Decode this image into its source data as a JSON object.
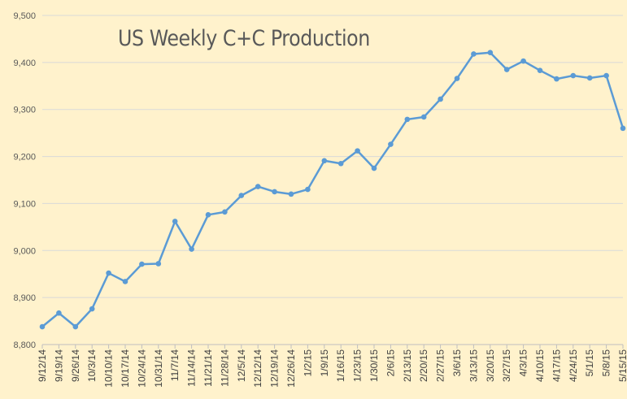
{
  "chart_data": {
    "type": "line",
    "title": "US Weekly C+C Production",
    "xlabel": "",
    "ylabel": "",
    "ylim": [
      8800,
      9500
    ],
    "yticks": [
      8800,
      8900,
      9000,
      9100,
      9200,
      9300,
      9400,
      9500
    ],
    "ytick_labels": [
      "8,800",
      "8,900",
      "9,000",
      "9,100",
      "9,200",
      "9,300",
      "9,400",
      "9,500"
    ],
    "grid": true,
    "categories": [
      "9/12/14",
      "9/19/14",
      "9/26/14",
      "10/3/14",
      "10/10/14",
      "10/17/14",
      "10/24/14",
      "10/31/14",
      "11/7/14",
      "11/14/14",
      "11/21/14",
      "11/28/14",
      "12/5/14",
      "12/12/14",
      "12/19/14",
      "12/26/14",
      "1/2/15",
      "1/9/15",
      "1/16/15",
      "1/23/15",
      "1/30/15",
      "2/6/15",
      "2/13/15",
      "2/20/15",
      "2/27/15",
      "3/6/15",
      "3/13/15",
      "3/20/15",
      "3/27/15",
      "4/3/15",
      "4/10/15",
      "4/17/15",
      "4/24/15",
      "5/1/15",
      "5/8/15",
      "5/15/15"
    ],
    "series": [
      {
        "name": "US Weekly C+C Production",
        "color": "#5b9bd5",
        "values": [
          8838,
          8867,
          8838,
          8876,
          8952,
          8934,
          8971,
          8972,
          9062,
          9003,
          9076,
          9082,
          9117,
          9136,
          9125,
          9120,
          9130,
          9191,
          9185,
          9212,
          9175,
          9226,
          9279,
          9284,
          9322,
          9366,
          9418,
          9421,
          9385,
          9403,
          9383,
          9365,
          9372,
          9367,
          9372,
          9260
        ]
      }
    ],
    "legend": "none"
  }
}
